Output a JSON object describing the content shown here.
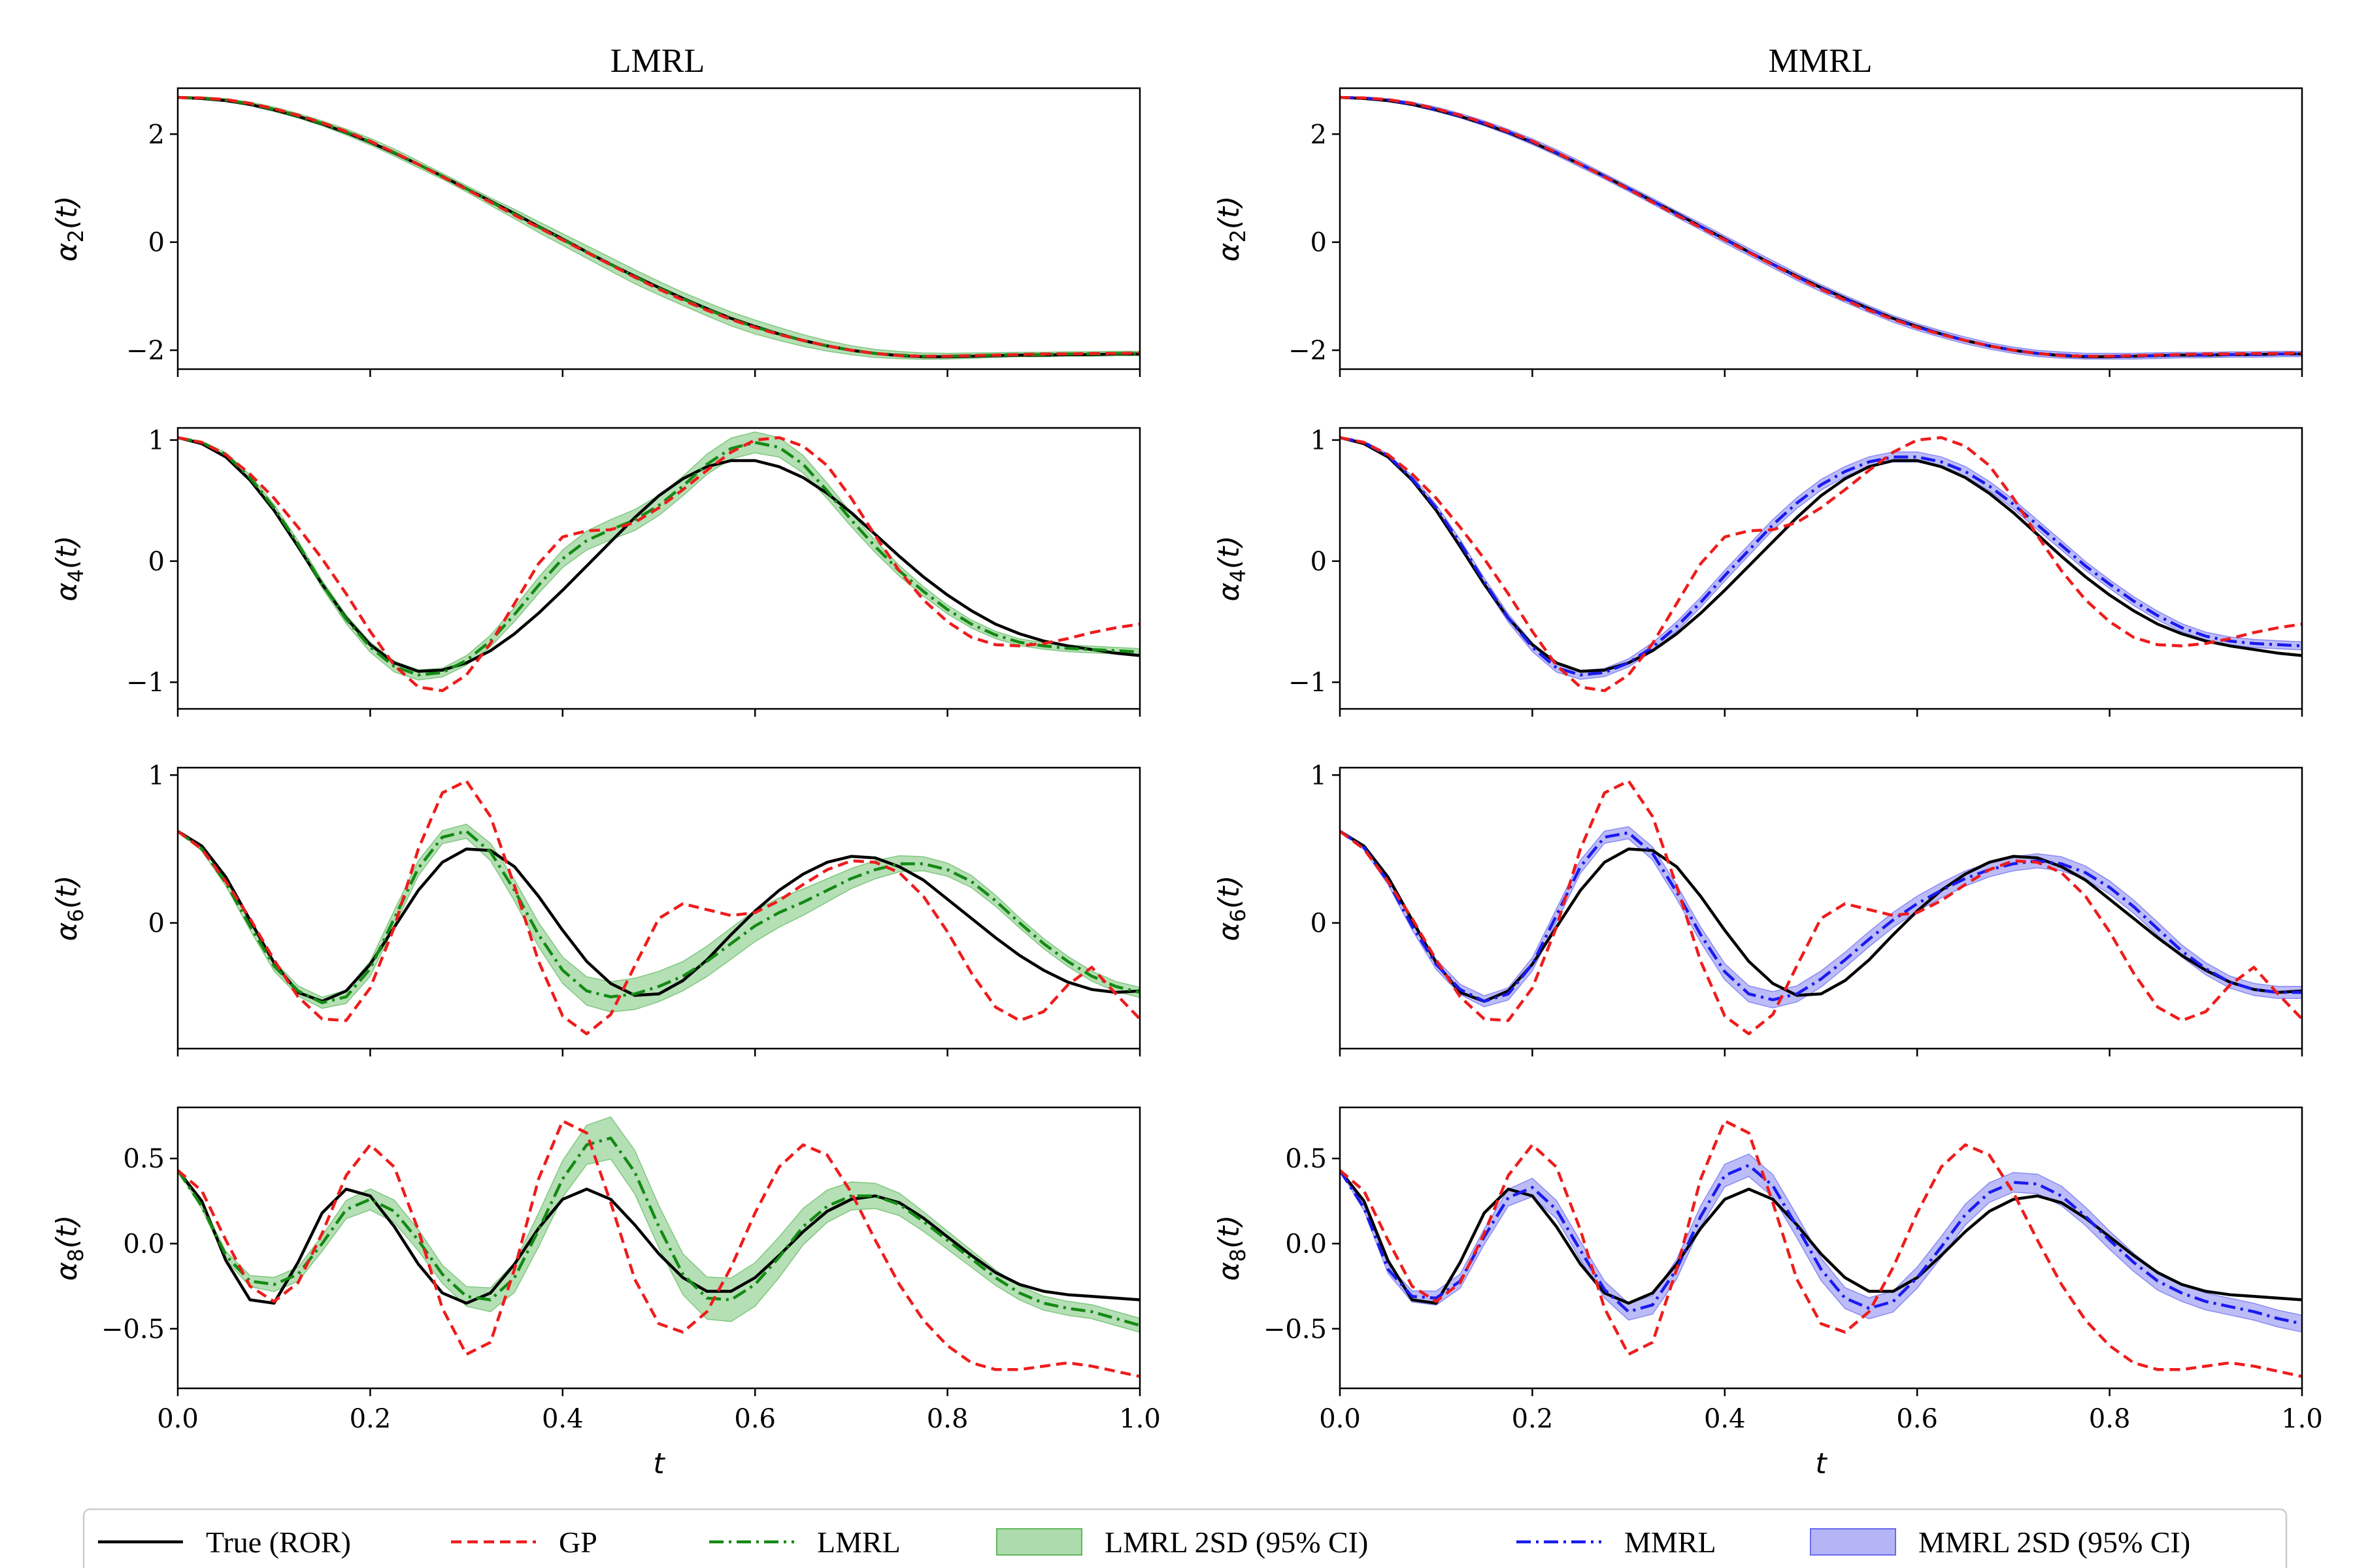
{
  "figure_titles": [
    "LMRL",
    "MMRL"
  ],
  "chart_data": {
    "type": "line",
    "x_label": "t",
    "xlim": [
      0.0,
      1.0
    ],
    "x_ticks": [
      "0.0",
      "0.2",
      "0.4",
      "0.6",
      "0.8",
      "1.0"
    ],
    "rows": [
      {
        "ylabel_main": "α",
        "ylabel_sub": "2",
        "ylabel_tail": "(t)",
        "ylim": [
          -2.35,
          2.85
        ],
        "yticks": [
          2,
          0,
          -2
        ],
        "ytick_labels": [
          "2",
          "0",
          "−2"
        ]
      },
      {
        "ylabel_main": "α",
        "ylabel_sub": "4",
        "ylabel_tail": "(t)",
        "ylim": [
          -1.22,
          1.1
        ],
        "yticks": [
          1,
          0,
          -1
        ],
        "ytick_labels": [
          "1",
          "0",
          "−1"
        ]
      },
      {
        "ylabel_main": "α",
        "ylabel_sub": "6",
        "ylabel_tail": "(t)",
        "ylim": [
          -0.85,
          1.05
        ],
        "yticks": [
          1,
          0
        ],
        "ytick_labels": [
          "1",
          "0"
        ]
      },
      {
        "ylabel_main": "α",
        "ylabel_sub": "8",
        "ylabel_tail": "(t)",
        "ylim": [
          -0.85,
          0.8
        ],
        "yticks": [
          0.5,
          0.0,
          -0.5
        ],
        "ytick_labels": [
          "0.5",
          "0.0",
          "−0.5"
        ]
      }
    ],
    "x": [
      0.0,
      0.025,
      0.05,
      0.075,
      0.1,
      0.125,
      0.15,
      0.175,
      0.2,
      0.225,
      0.25,
      0.275,
      0.3,
      0.325,
      0.35,
      0.375,
      0.4,
      0.425,
      0.45,
      0.475,
      0.5,
      0.525,
      0.55,
      0.575,
      0.6,
      0.625,
      0.65,
      0.675,
      0.7,
      0.725,
      0.75,
      0.775,
      0.8,
      0.825,
      0.85,
      0.875,
      0.9,
      0.925,
      0.95,
      0.975,
      1.0
    ],
    "series": {
      "true": [
        [
          2.68,
          2.66,
          2.62,
          2.55,
          2.45,
          2.33,
          2.19,
          2.03,
          1.85,
          1.65,
          1.44,
          1.22,
          0.99,
          0.76,
          0.53,
          0.29,
          0.06,
          -0.18,
          -0.41,
          -0.63,
          -0.84,
          -1.04,
          -1.23,
          -1.41,
          -1.56,
          -1.7,
          -1.82,
          -1.92,
          -2.0,
          -2.06,
          -2.1,
          -2.12,
          -2.12,
          -2.11,
          -2.1,
          -2.09,
          -2.09,
          -2.08,
          -2.08,
          -2.07,
          -2.07
        ],
        [
          1.02,
          0.97,
          0.86,
          0.67,
          0.42,
          0.12,
          -0.19,
          -0.47,
          -0.69,
          -0.84,
          -0.91,
          -0.9,
          -0.84,
          -0.74,
          -0.6,
          -0.43,
          -0.24,
          -0.04,
          0.16,
          0.36,
          0.54,
          0.68,
          0.78,
          0.83,
          0.83,
          0.78,
          0.69,
          0.56,
          0.4,
          0.22,
          0.04,
          -0.13,
          -0.28,
          -0.41,
          -0.52,
          -0.6,
          -0.66,
          -0.7,
          -0.73,
          -0.76,
          -0.78
        ],
        [
          0.62,
          0.52,
          0.31,
          0.02,
          -0.27,
          -0.47,
          -0.53,
          -0.46,
          -0.28,
          -0.03,
          0.22,
          0.41,
          0.5,
          0.49,
          0.38,
          0.18,
          -0.05,
          -0.26,
          -0.41,
          -0.49,
          -0.48,
          -0.39,
          -0.25,
          -0.08,
          0.08,
          0.22,
          0.33,
          0.41,
          0.45,
          0.44,
          0.38,
          0.29,
          0.16,
          0.03,
          -0.1,
          -0.22,
          -0.32,
          -0.4,
          -0.45,
          -0.47,
          -0.46
        ],
        [
          0.43,
          0.25,
          -0.1,
          -0.33,
          -0.35,
          -0.11,
          0.18,
          0.32,
          0.28,
          0.1,
          -0.12,
          -0.29,
          -0.35,
          -0.29,
          -0.12,
          0.09,
          0.26,
          0.32,
          0.26,
          0.11,
          -0.06,
          -0.2,
          -0.28,
          -0.28,
          -0.2,
          -0.07,
          0.07,
          0.19,
          0.26,
          0.28,
          0.24,
          0.15,
          0.04,
          -0.07,
          -0.17,
          -0.24,
          -0.28,
          -0.3,
          -0.31,
          -0.32,
          -0.33
        ]
      ],
      "gp": [
        [
          2.68,
          2.67,
          2.64,
          2.57,
          2.47,
          2.35,
          2.21,
          2.05,
          1.87,
          1.66,
          1.44,
          1.21,
          0.98,
          0.74,
          0.5,
          0.27,
          0.04,
          -0.19,
          -0.42,
          -0.65,
          -0.87,
          -1.07,
          -1.26,
          -1.43,
          -1.58,
          -1.71,
          -1.82,
          -1.92,
          -2.0,
          -2.06,
          -2.1,
          -2.11,
          -2.11,
          -2.1,
          -2.09,
          -2.08,
          -2.07,
          -2.07,
          -2.06,
          -2.06,
          -2.05
        ],
        [
          1.02,
          0.98,
          0.88,
          0.72,
          0.52,
          0.28,
          0.02,
          -0.27,
          -0.58,
          -0.86,
          -1.04,
          -1.07,
          -0.94,
          -0.68,
          -0.35,
          -0.02,
          0.2,
          0.25,
          0.26,
          0.32,
          0.44,
          0.59,
          0.75,
          0.9,
          1.0,
          1.02,
          0.95,
          0.79,
          0.52,
          0.21,
          -0.08,
          -0.32,
          -0.5,
          -0.63,
          -0.69,
          -0.7,
          -0.68,
          -0.64,
          -0.59,
          -0.55,
          -0.52
        ],
        [
          0.62,
          0.5,
          0.28,
          0.03,
          -0.25,
          -0.5,
          -0.65,
          -0.66,
          -0.44,
          -0.03,
          0.5,
          0.88,
          0.96,
          0.72,
          0.25,
          -0.26,
          -0.63,
          -0.75,
          -0.62,
          -0.29,
          0.03,
          0.13,
          0.09,
          0.05,
          0.07,
          0.15,
          0.26,
          0.36,
          0.42,
          0.41,
          0.34,
          0.18,
          -0.06,
          -0.34,
          -0.57,
          -0.66,
          -0.6,
          -0.42,
          -0.3,
          -0.48,
          -0.65
        ],
        [
          0.43,
          0.31,
          0.02,
          -0.25,
          -0.34,
          -0.23,
          0.06,
          0.4,
          0.58,
          0.45,
          0.08,
          -0.38,
          -0.65,
          -0.58,
          -0.15,
          0.38,
          0.72,
          0.65,
          0.24,
          -0.21,
          -0.47,
          -0.52,
          -0.4,
          -0.14,
          0.18,
          0.45,
          0.58,
          0.52,
          0.3,
          0.02,
          -0.24,
          -0.45,
          -0.6,
          -0.7,
          -0.74,
          -0.74,
          -0.72,
          -0.7,
          -0.72,
          -0.75,
          -0.78
        ]
      ],
      "lmrl": [
        [
          2.68,
          2.67,
          2.63,
          2.56,
          2.46,
          2.34,
          2.2,
          2.04,
          1.86,
          1.66,
          1.44,
          1.22,
          0.99,
          0.75,
          0.52,
          0.28,
          0.05,
          -0.18,
          -0.41,
          -0.64,
          -0.85,
          -1.05,
          -1.24,
          -1.42,
          -1.57,
          -1.7,
          -1.82,
          -1.92,
          -2.0,
          -2.06,
          -2.09,
          -2.11,
          -2.11,
          -2.1,
          -2.09,
          -2.08,
          -2.08,
          -2.07,
          -2.07,
          -2.06,
          -2.06
        ],
        [
          1.02,
          0.98,
          0.88,
          0.69,
          0.44,
          0.14,
          -0.19,
          -0.48,
          -0.71,
          -0.87,
          -0.94,
          -0.92,
          -0.82,
          -0.66,
          -0.44,
          -0.2,
          0.02,
          0.17,
          0.26,
          0.34,
          0.46,
          0.62,
          0.8,
          0.93,
          0.98,
          0.94,
          0.8,
          0.58,
          0.34,
          0.12,
          -0.08,
          -0.25,
          -0.4,
          -0.52,
          -0.61,
          -0.67,
          -0.7,
          -0.72,
          -0.73,
          -0.74,
          -0.75
        ],
        [
          0.62,
          0.5,
          0.27,
          -0.02,
          -0.29,
          -0.46,
          -0.54,
          -0.5,
          -0.31,
          0.03,
          0.37,
          0.58,
          0.62,
          0.48,
          0.22,
          -0.08,
          -0.32,
          -0.46,
          -0.5,
          -0.48,
          -0.43,
          -0.36,
          -0.26,
          -0.14,
          -0.02,
          0.07,
          0.14,
          0.22,
          0.3,
          0.36,
          0.4,
          0.4,
          0.36,
          0.28,
          0.15,
          0.0,
          -0.14,
          -0.26,
          -0.36,
          -0.43,
          -0.47
        ],
        [
          0.43,
          0.22,
          -0.07,
          -0.22,
          -0.24,
          -0.18,
          0.0,
          0.2,
          0.26,
          0.19,
          0.02,
          -0.18,
          -0.31,
          -0.33,
          -0.2,
          0.08,
          0.38,
          0.58,
          0.62,
          0.42,
          0.1,
          -0.18,
          -0.32,
          -0.33,
          -0.24,
          -0.08,
          0.1,
          0.22,
          0.28,
          0.28,
          0.23,
          0.13,
          0.02,
          -0.09,
          -0.2,
          -0.29,
          -0.35,
          -0.38,
          -0.4,
          -0.44,
          -0.48
        ]
      ],
      "mmrl": [
        [
          2.68,
          2.67,
          2.63,
          2.56,
          2.46,
          2.34,
          2.2,
          2.04,
          1.86,
          1.66,
          1.44,
          1.22,
          0.99,
          0.76,
          0.52,
          0.29,
          0.05,
          -0.18,
          -0.41,
          -0.64,
          -0.85,
          -1.05,
          -1.24,
          -1.42,
          -1.57,
          -1.7,
          -1.82,
          -1.92,
          -2.0,
          -2.06,
          -2.09,
          -2.11,
          -2.11,
          -2.11,
          -2.1,
          -2.09,
          -2.09,
          -2.08,
          -2.08,
          -2.07,
          -2.07
        ],
        [
          1.02,
          0.98,
          0.87,
          0.68,
          0.44,
          0.15,
          -0.17,
          -0.47,
          -0.71,
          -0.88,
          -0.94,
          -0.92,
          -0.84,
          -0.71,
          -0.54,
          -0.34,
          -0.12,
          0.09,
          0.3,
          0.48,
          0.63,
          0.74,
          0.82,
          0.86,
          0.86,
          0.82,
          0.74,
          0.62,
          0.47,
          0.3,
          0.13,
          -0.04,
          -0.19,
          -0.33,
          -0.45,
          -0.55,
          -0.62,
          -0.66,
          -0.68,
          -0.69,
          -0.7
        ],
        [
          0.62,
          0.51,
          0.28,
          -0.02,
          -0.28,
          -0.45,
          -0.53,
          -0.48,
          -0.28,
          0.05,
          0.38,
          0.58,
          0.61,
          0.47,
          0.21,
          -0.08,
          -0.33,
          -0.48,
          -0.52,
          -0.48,
          -0.38,
          -0.25,
          -0.11,
          0.02,
          0.13,
          0.22,
          0.3,
          0.36,
          0.4,
          0.42,
          0.4,
          0.34,
          0.24,
          0.11,
          -0.04,
          -0.19,
          -0.31,
          -0.4,
          -0.45,
          -0.47,
          -0.47
        ],
        [
          0.43,
          0.21,
          -0.15,
          -0.31,
          -0.32,
          -0.22,
          0.04,
          0.27,
          0.33,
          0.2,
          -0.04,
          -0.27,
          -0.4,
          -0.36,
          -0.15,
          0.16,
          0.4,
          0.46,
          0.34,
          0.1,
          -0.15,
          -0.32,
          -0.38,
          -0.34,
          -0.2,
          -0.02,
          0.17,
          0.3,
          0.36,
          0.35,
          0.28,
          0.16,
          0.02,
          -0.11,
          -0.22,
          -0.29,
          -0.34,
          -0.37,
          -0.4,
          -0.44,
          -0.47
        ]
      ],
      "band_halfwidth": [
        0.008,
        0.012,
        0.018,
        0.025
      ],
      "band_scale_lmrl": [
        0,
        0.4,
        0.6,
        0.8,
        1.0,
        1.0,
        1.1,
        1.3,
        1.5,
        1.6,
        1.5,
        1.3,
        1.4,
        1.7,
        2.1,
        2.4,
        2.6,
        2.8,
        3.0,
        3.1,
        3.0,
        2.9,
        3.0,
        3.1,
        3.1,
        2.9,
        2.6,
        2.3,
        2.0,
        1.8,
        1.6,
        1.4,
        1.3,
        1.2,
        1.1,
        1.0,
        1.0,
        1.0,
        1.0,
        1.0,
        1.0
      ],
      "band_scale_mmrl": [
        0,
        0.4,
        0.6,
        0.8,
        1.0,
        1.0,
        1.1,
        1.2,
        1.3,
        1.3,
        1.3,
        1.2,
        1.2,
        1.3,
        1.4,
        1.5,
        1.6,
        1.6,
        1.6,
        1.6,
        1.6,
        1.5,
        1.5,
        1.5,
        1.5,
        1.5,
        1.5,
        1.4,
        1.4,
        1.4,
        1.4,
        1.3,
        1.3,
        1.3,
        1.3,
        1.2,
        1.2,
        1.2,
        1.2,
        1.2,
        1.2
      ]
    },
    "colors": {
      "true": "#000000",
      "gp": "#ee1c1c",
      "lmrl": "#138a13",
      "lmrl_band": "#5cb85c",
      "mmrl": "#1a1aee",
      "mmrl_band": "#6a6af0"
    },
    "legend": {
      "position": "bottom",
      "entries": [
        "True (ROR)",
        "GP",
        "LMRL",
        "LMRL 2SD (95% CI)",
        "MMRL",
        "MMRL 2SD (95% CI)"
      ]
    }
  }
}
